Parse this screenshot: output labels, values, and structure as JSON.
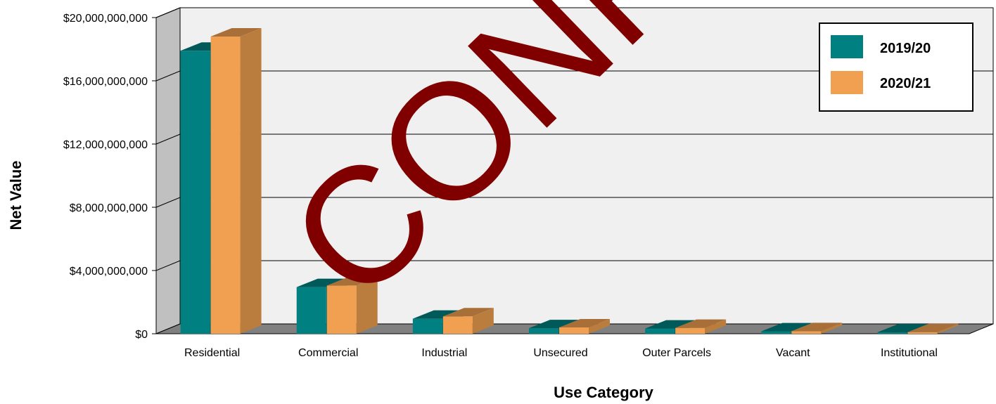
{
  "chart_data": {
    "type": "bar",
    "categories": [
      "Residential",
      "Commercial",
      "Industrial",
      "Unsecured",
      "Outer Parcels",
      "Vacant",
      "Institutional"
    ],
    "series": [
      {
        "name": "2019/20",
        "color": "#008080",
        "values": [
          17900000000,
          2950000000,
          950000000,
          350000000,
          330000000,
          150000000,
          90000000
        ]
      },
      {
        "name": "2020/21",
        "color": "#F0A050",
        "values": [
          18800000000,
          3050000000,
          1100000000,
          400000000,
          370000000,
          160000000,
          100000000
        ]
      }
    ],
    "xlabel": "Use Category",
    "ylabel": "Net Value",
    "ylim": [
      0,
      20000000000
    ],
    "yticks": [
      0,
      4000000000,
      8000000000,
      12000000000,
      16000000000,
      20000000000
    ],
    "ytick_labels": [
      "$0",
      "$4,000,000,000",
      "$8,000,000,000",
      "$12,000,000,000",
      "$16,000,000,000",
      "$20,000,000,000"
    ],
    "grid": true,
    "legend_position": "top-right",
    "style": "3d-bar"
  },
  "watermark": {
    "text": "CONFIDENTIAL",
    "color": "#800000"
  }
}
